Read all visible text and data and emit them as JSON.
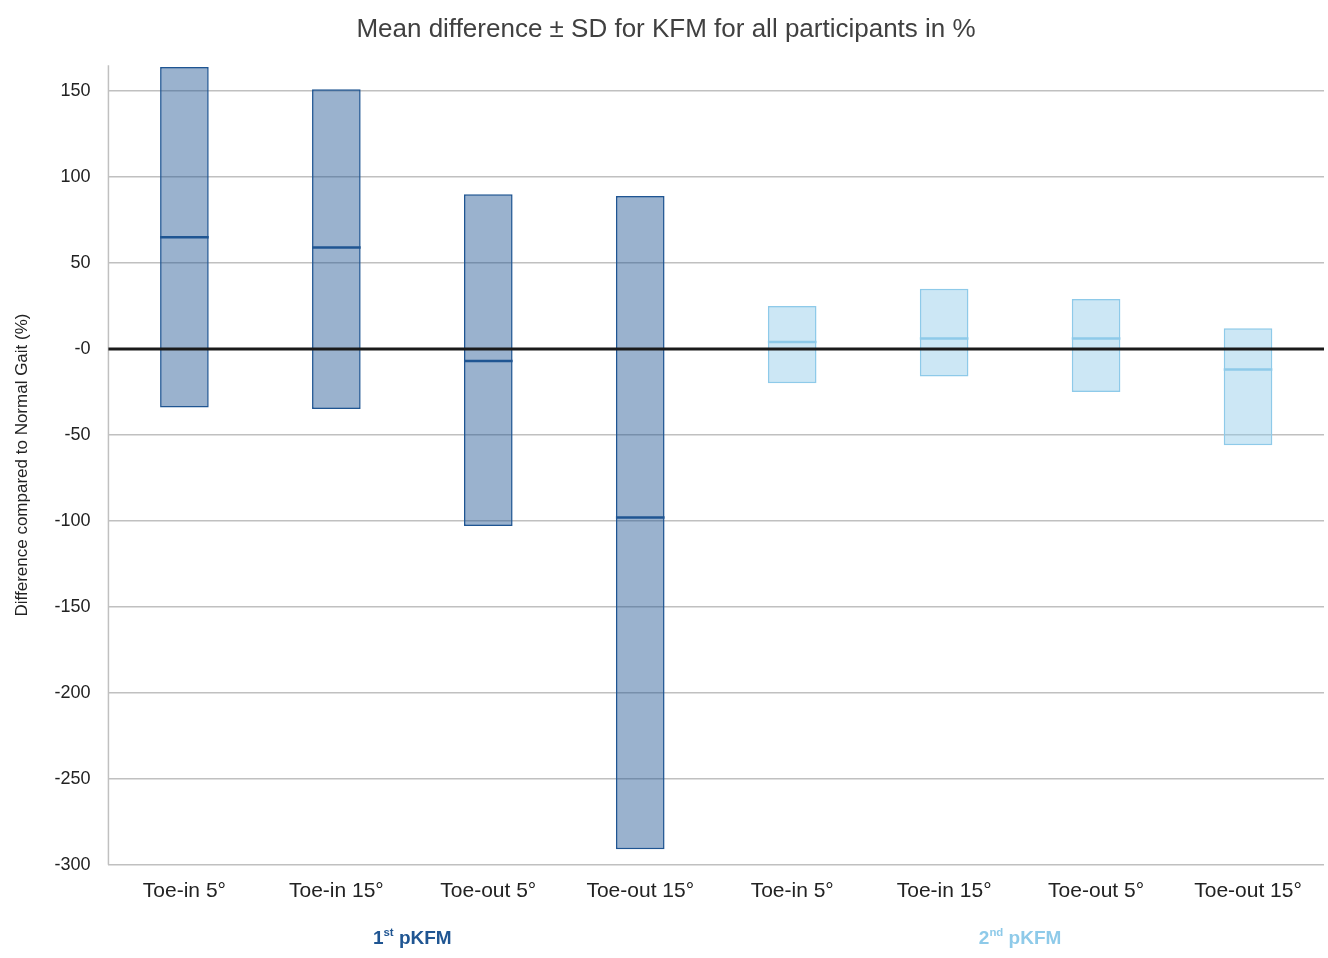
{
  "chart_data": {
    "type": "box",
    "title": "Mean difference ± SD for KFM for all participants in %",
    "ylabel": "Difference compared to Normal Gait (%)",
    "categories": [
      "Toe-in 5°",
      "Toe-in 15°",
      "Toe-out 5°",
      "Toe-out 15°",
      "Toe-in 5°",
      "Toe-in 15°",
      "Toe-out 5°",
      "Toe-out 15°"
    ],
    "series": [
      {
        "name": "1$^{st}$ pKFM",
        "color": "#1f5592",
        "boxes": [
          {
            "low": -34,
            "q1": -34,
            "median": 65,
            "q3": 164,
            "high": 164
          },
          {
            "low": -35,
            "q1": -35,
            "median": 59,
            "q3": 151,
            "high": 151
          },
          {
            "low": -103,
            "q1": -103,
            "median": -7,
            "q3": 90,
            "high": 90
          },
          {
            "low": -291,
            "q1": -291,
            "median": -98,
            "q3": 89,
            "high": 89
          },
          null,
          null,
          null,
          null
        ]
      },
      {
        "name": "2$^{nd}$ pKFM",
        "color": "#8ecae9",
        "boxes": [
          null,
          null,
          null,
          null,
          {
            "low": -20,
            "q1": -20,
            "median": 4,
            "q3": 25,
            "high": 25
          },
          {
            "low": -16,
            "q1": -16,
            "median": 6,
            "q3": 35,
            "high": 35
          },
          {
            "low": -25,
            "q1": -25,
            "median": 6,
            "q3": 29,
            "high": 29
          },
          {
            "low": -56,
            "q1": -56,
            "median": -12,
            "q3": 12,
            "high": 12
          }
        ]
      }
    ],
    "ylim": [
      -300,
      165
    ],
    "yticks": [
      -300,
      -250,
      -200,
      -150,
      -100,
      -50,
      {
        "value": 0,
        "label": "-0"
      },
      50,
      100,
      150
    ],
    "ref_lines": [
      {
        "axis": "y",
        "value": 0,
        "color": "#1a1a1a"
      }
    ],
    "grid": "y",
    "legend": false
  }
}
